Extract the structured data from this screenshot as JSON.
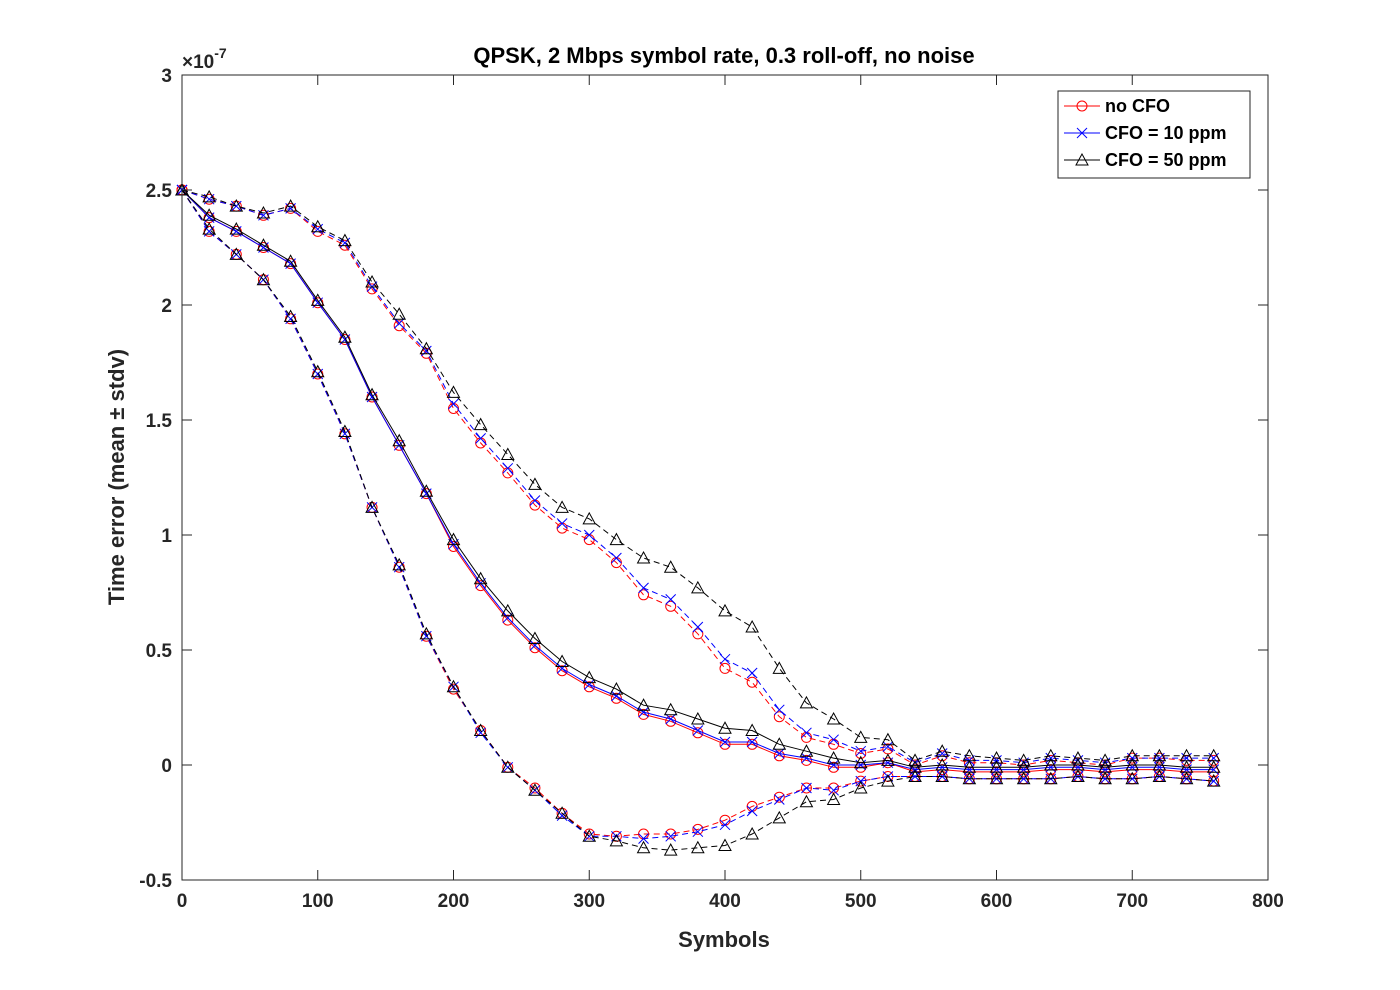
{
  "chart_data": {
    "type": "line",
    "title": "QPSK, 2 Mbps symbol rate, 0.3 roll-off, no noise",
    "xlabel": "Symbols",
    "ylabel": "Time error (mean ± stdv)",
    "y_exponent_label": "×10",
    "y_exponent_power": "-7",
    "xlim": [
      0,
      800
    ],
    "ylim": [
      -0.5,
      3
    ],
    "x_ticks": [
      0,
      100,
      200,
      300,
      400,
      500,
      600,
      700,
      800
    ],
    "x_tick_labels": [
      "0",
      "100",
      "200",
      "300",
      "400",
      "500",
      "600",
      "700",
      "800"
    ],
    "y_ticks": [
      -0.5,
      0,
      0.5,
      1,
      1.5,
      2,
      2.5,
      3
    ],
    "y_tick_labels": [
      "-0.5",
      "0",
      "0.5",
      "1",
      "1.5",
      "2",
      "2.5",
      "3"
    ],
    "grid": false,
    "legend_position": "top-right",
    "x": [
      0,
      20,
      40,
      60,
      80,
      100,
      120,
      140,
      160,
      180,
      200,
      220,
      240,
      260,
      280,
      300,
      320,
      340,
      360,
      380,
      400,
      420,
      440,
      460,
      480,
      500,
      520,
      540,
      560,
      580,
      600,
      620,
      640,
      660,
      680,
      700,
      720,
      740,
      760
    ],
    "series": [
      {
        "name": "no CFO",
        "color": "#ff0000",
        "marker": "circle",
        "mean": [
          2.5,
          2.38,
          2.32,
          2.25,
          2.18,
          2.01,
          1.85,
          1.6,
          1.39,
          1.18,
          0.95,
          0.78,
          0.63,
          0.51,
          0.41,
          0.34,
          0.29,
          0.22,
          0.19,
          0.14,
          0.09,
          0.09,
          0.04,
          0.02,
          -0.01,
          -0.01,
          0.01,
          -0.03,
          -0.02,
          -0.03,
          -0.03,
          -0.03,
          -0.02,
          -0.02,
          -0.03,
          -0.02,
          -0.02,
          -0.03,
          -0.03
        ],
        "upper": [
          2.5,
          2.46,
          2.43,
          2.39,
          2.42,
          2.32,
          2.26,
          2.07,
          1.91,
          1.79,
          1.55,
          1.4,
          1.27,
          1.13,
          1.03,
          0.98,
          0.88,
          0.74,
          0.69,
          0.57,
          0.42,
          0.36,
          0.21,
          0.12,
          0.09,
          0.05,
          0.07,
          0.0,
          0.04,
          0.01,
          0.01,
          0.0,
          0.02,
          0.01,
          0.0,
          0.03,
          0.03,
          0.02,
          0.02
        ],
        "lower": [
          2.5,
          2.32,
          2.22,
          2.11,
          1.94,
          1.7,
          1.44,
          1.12,
          0.86,
          0.56,
          0.33,
          0.15,
          -0.01,
          -0.1,
          -0.21,
          -0.3,
          -0.31,
          -0.3,
          -0.3,
          -0.28,
          -0.24,
          -0.18,
          -0.14,
          -0.1,
          -0.1,
          -0.07,
          -0.05,
          -0.05,
          -0.05,
          -0.06,
          -0.06,
          -0.06,
          -0.06,
          -0.05,
          -0.06,
          -0.06,
          -0.05,
          -0.06,
          -0.07
        ]
      },
      {
        "name": "CFO = 10 ppm",
        "color": "#0000ff",
        "marker": "x",
        "mean": [
          2.5,
          2.38,
          2.32,
          2.25,
          2.18,
          2.01,
          1.85,
          1.6,
          1.39,
          1.18,
          0.96,
          0.79,
          0.64,
          0.52,
          0.42,
          0.35,
          0.3,
          0.23,
          0.2,
          0.15,
          0.1,
          0.1,
          0.05,
          0.03,
          0.0,
          0.0,
          0.01,
          -0.02,
          -0.01,
          -0.02,
          -0.02,
          -0.02,
          -0.01,
          -0.01,
          -0.02,
          -0.01,
          -0.01,
          -0.02,
          -0.02
        ],
        "upper": [
          2.5,
          2.46,
          2.43,
          2.39,
          2.42,
          2.33,
          2.27,
          2.08,
          1.92,
          1.8,
          1.57,
          1.42,
          1.29,
          1.15,
          1.05,
          1.0,
          0.9,
          0.77,
          0.72,
          0.6,
          0.46,
          0.4,
          0.24,
          0.14,
          0.11,
          0.06,
          0.08,
          0.01,
          0.05,
          0.02,
          0.02,
          0.01,
          0.03,
          0.02,
          0.01,
          0.03,
          0.03,
          0.03,
          0.03
        ],
        "lower": [
          2.5,
          2.32,
          2.22,
          2.11,
          1.94,
          1.7,
          1.44,
          1.12,
          0.86,
          0.56,
          0.34,
          0.14,
          -0.01,
          -0.11,
          -0.22,
          -0.31,
          -0.31,
          -0.32,
          -0.31,
          -0.29,
          -0.26,
          -0.2,
          -0.15,
          -0.1,
          -0.11,
          -0.07,
          -0.05,
          -0.05,
          -0.05,
          -0.06,
          -0.06,
          -0.06,
          -0.06,
          -0.05,
          -0.06,
          -0.06,
          -0.05,
          -0.06,
          -0.07
        ]
      },
      {
        "name": "CFO = 50 ppm",
        "color": "#000000",
        "marker": "triangle",
        "mean": [
          2.5,
          2.39,
          2.33,
          2.26,
          2.19,
          2.02,
          1.86,
          1.61,
          1.41,
          1.19,
          0.98,
          0.81,
          0.67,
          0.55,
          0.45,
          0.38,
          0.33,
          0.26,
          0.24,
          0.2,
          0.16,
          0.15,
          0.09,
          0.06,
          0.03,
          0.01,
          0.02,
          -0.01,
          0.0,
          -0.01,
          -0.01,
          -0.01,
          0.0,
          0.0,
          -0.01,
          0.0,
          0.0,
          -0.01,
          -0.01
        ],
        "upper": [
          2.5,
          2.47,
          2.43,
          2.4,
          2.43,
          2.34,
          2.28,
          2.1,
          1.96,
          1.81,
          1.62,
          1.48,
          1.35,
          1.22,
          1.12,
          1.07,
          0.98,
          0.9,
          0.86,
          0.77,
          0.67,
          0.6,
          0.42,
          0.27,
          0.2,
          0.12,
          0.11,
          0.02,
          0.06,
          0.04,
          0.03,
          0.02,
          0.04,
          0.03,
          0.02,
          0.04,
          0.04,
          0.04,
          0.04
        ],
        "lower": [
          2.5,
          2.33,
          2.22,
          2.11,
          1.95,
          1.71,
          1.45,
          1.12,
          0.87,
          0.57,
          0.34,
          0.15,
          -0.01,
          -0.11,
          -0.21,
          -0.31,
          -0.33,
          -0.36,
          -0.37,
          -0.36,
          -0.35,
          -0.3,
          -0.23,
          -0.16,
          -0.15,
          -0.1,
          -0.07,
          -0.05,
          -0.05,
          -0.06,
          -0.06,
          -0.06,
          -0.06,
          -0.05,
          -0.06,
          -0.06,
          -0.05,
          -0.06,
          -0.07
        ]
      }
    ]
  }
}
